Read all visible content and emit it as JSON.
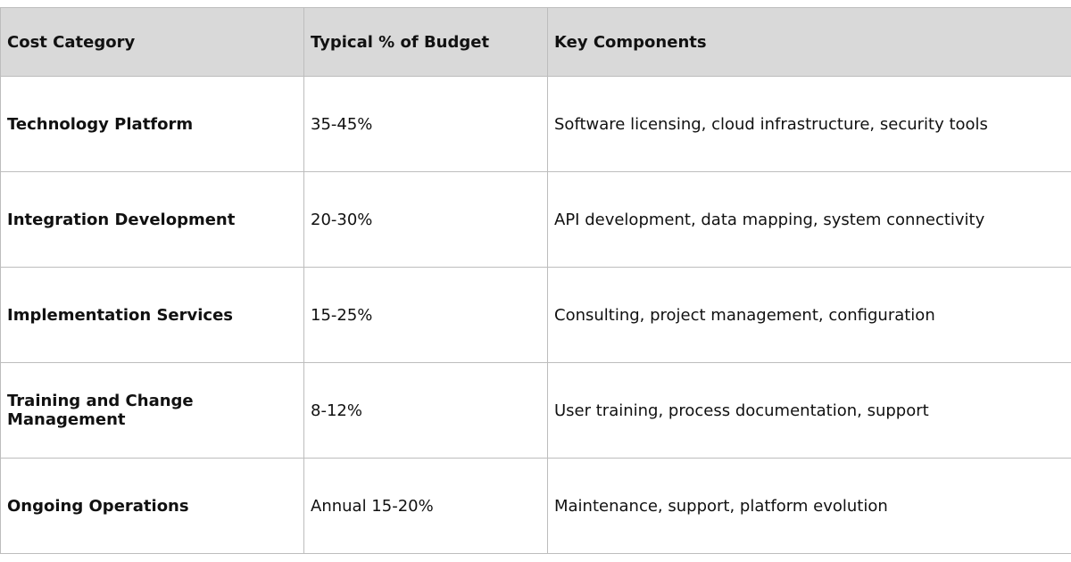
{
  "table": {
    "headers": [
      "Cost Category",
      "Typical % of Budget",
      "Key Components"
    ],
    "rows": [
      [
        "Technology Platform",
        "35-45%",
        "Software licensing, cloud infrastructure, security tools"
      ],
      [
        "Integration Development",
        "20-30%",
        "API development, data mapping, system connectivity"
      ],
      [
        "Implementation Services",
        "15-25%",
        "Consulting, project management, configuration"
      ],
      [
        "Training and Change Management",
        "8-12%",
        "User training, process documentation, support"
      ],
      [
        "Ongoing Operations",
        "Annual 15-20%",
        "Maintenance, support, platform evolution"
      ]
    ]
  }
}
